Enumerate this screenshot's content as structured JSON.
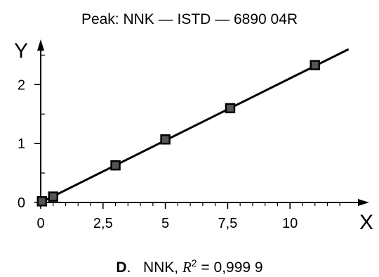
{
  "title": "Peak: NNK — ISTD — 6890 04R",
  "caption": {
    "panel": "D",
    "sep": ".   ",
    "analyte": "NNK, ",
    "r_symbol": "R",
    "r_exp": "2",
    "r_value": " = 0,999 9"
  },
  "chart_data": {
    "type": "scatter",
    "title": "Peak: NNK — ISTD — 6890 04R",
    "xlabel": "X",
    "ylabel": "Y",
    "xlim": [
      0,
      12.5
    ],
    "ylim": [
      0,
      2.6
    ],
    "x_ticks": [
      0,
      2.5,
      5,
      7.5,
      10
    ],
    "x_tick_labels": [
      "0",
      "2,5",
      "5",
      "7,5",
      "10"
    ],
    "x_minor_ticks": [
      0.5,
      1,
      1.5,
      2,
      3,
      3.5,
      4,
      4.5,
      5.5,
      6,
      6.5,
      7,
      8,
      8.5,
      9,
      9.5,
      10.5,
      11,
      11.5,
      12
    ],
    "y_ticks": [
      0,
      1,
      2
    ],
    "y_tick_labels": [
      "0",
      "1",
      "2"
    ],
    "y_minor_ticks": [
      0.5,
      1.5,
      2.5
    ],
    "grid": false,
    "series": [
      {
        "points": [
          {
            "x": 0.05,
            "y": 0.02
          },
          {
            "x": 0.5,
            "y": 0.1
          },
          {
            "x": 3.0,
            "y": 0.63
          },
          {
            "x": 5.0,
            "y": 1.07
          },
          {
            "x": 7.6,
            "y": 1.6
          },
          {
            "x": 11.0,
            "y": 2.33
          }
        ],
        "marker": "square",
        "color": "#000000"
      }
    ],
    "fit_line": {
      "x0": 0.0,
      "y0": 0.0,
      "x1": 12.35,
      "y1": 2.6
    }
  }
}
